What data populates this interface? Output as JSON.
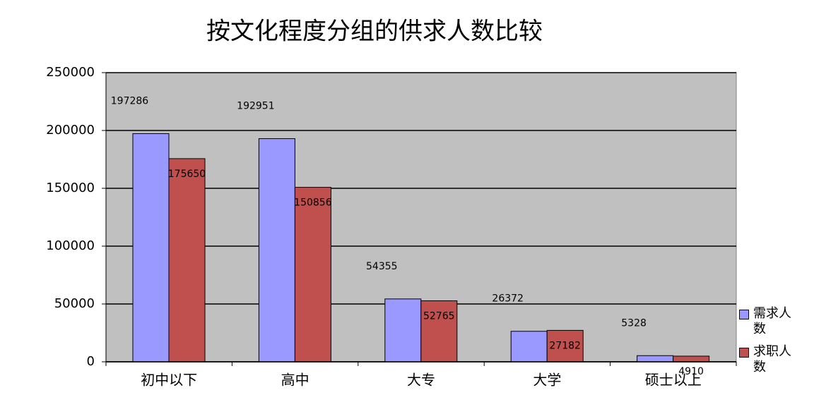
{
  "chart_data": {
    "type": "bar",
    "title": "按文化程度分组的供求人数比较",
    "categories": [
      "初中以下",
      "高中",
      "大专",
      "大学",
      "硕士以上"
    ],
    "series": [
      {
        "name": "需求人数",
        "color": "#9999ff",
        "values": [
          197286,
          192951,
          54355,
          26372,
          5328
        ]
      },
      {
        "name": "求职人数",
        "color": "#c0504d",
        "values": [
          175650,
          150856,
          52765,
          27182,
          4910
        ]
      }
    ],
    "ylim": [
      0,
      250000
    ],
    "yticks": [
      0,
      50000,
      100000,
      150000,
      200000,
      250000
    ],
    "grid": true,
    "legend": "right"
  }
}
